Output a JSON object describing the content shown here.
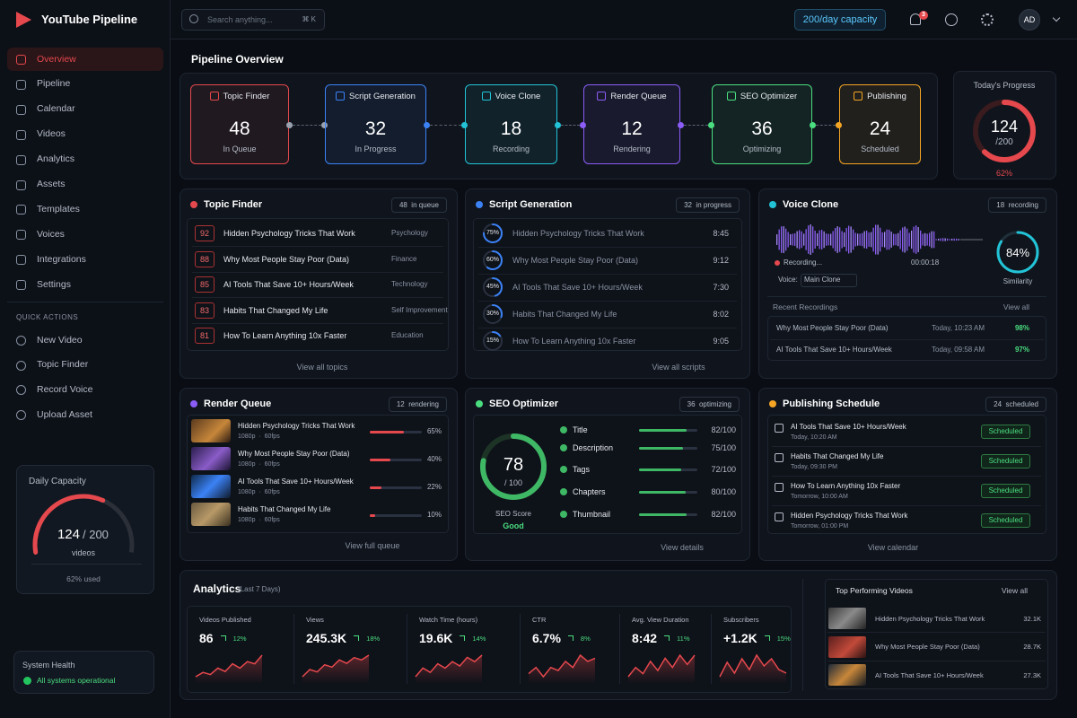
{
  "brand": "YouTube Pipeline",
  "search": {
    "placeholder": "Search anything...",
    "shortcut": "⌘ K"
  },
  "capacity_badge": "200/day capacity",
  "notifications": "3",
  "avatar": "AD",
  "nav": [
    "Overview",
    "Pipeline",
    "Calendar",
    "Videos",
    "Analytics",
    "Assets",
    "Templates",
    "Voices",
    "Integrations",
    "Settings"
  ],
  "quick_actions": {
    "title": "QUICK ACTIONS",
    "items": [
      "New Video",
      "Topic Finder",
      "Record Voice",
      "Upload Asset"
    ]
  },
  "daily_capacity": {
    "title": "Daily Capacity",
    "value": "124",
    "total": "/ 200",
    "unit": "videos",
    "used": "62% used"
  },
  "system_health": {
    "title": "System Health",
    "status": "All systems operational"
  },
  "overview": {
    "title": "Pipeline Overview",
    "stages": [
      {
        "name": "Topic Finder",
        "count": "48",
        "status": "In Queue"
      },
      {
        "name": "Script Generation",
        "count": "32",
        "status": "In Progress"
      },
      {
        "name": "Voice Clone",
        "count": "18",
        "status": "Recording"
      },
      {
        "name": "Render Queue",
        "count": "12",
        "status": "Rendering"
      },
      {
        "name": "SEO Optimizer",
        "count": "36",
        "status": "Optimizing"
      },
      {
        "name": "Publishing",
        "count": "24",
        "status": "Scheduled"
      }
    ]
  },
  "today": {
    "title": "Today's Progress",
    "value": "124",
    "total": "/200",
    "percent": "62%"
  },
  "topic_finder": {
    "title": "Topic Finder",
    "badge": "48  in queue",
    "rows": [
      [
        "92",
        "Hidden Psychology Tricks That Work",
        "Psychology"
      ],
      [
        "88",
        "Why Most People Stay Poor (Data)",
        "Finance"
      ],
      [
        "85",
        "AI Tools That Save 10+ Hours/Week",
        "Technology"
      ],
      [
        "83",
        "Habits That Changed My Life",
        "Self Improvement"
      ],
      [
        "81",
        "How To Learn Anything 10x Faster",
        "Education"
      ]
    ],
    "link": "View all topics"
  },
  "script_generation": {
    "title": "Script Generation",
    "badge": "32  in progress",
    "rows": [
      [
        "75%",
        "Hidden Psychology Tricks That Work",
        "8:45"
      ],
      [
        "60%",
        "Why Most People Stay Poor (Data)",
        "9:12"
      ],
      [
        "45%",
        "AI Tools That Save 10+ Hours/Week",
        "7:30"
      ],
      [
        "30%",
        "Habits That Changed My Life",
        "8:02"
      ],
      [
        "15%",
        "How To Learn Anything 10x Faster",
        "9:05"
      ]
    ],
    "link": "View all scripts"
  },
  "voice_clone": {
    "title": "Voice Clone",
    "badge": "18  recording",
    "recording": "Recording...",
    "time": "00:00:18",
    "voice_label": "Voice:",
    "voice": "Main Clone",
    "similarity": "84%",
    "similarity_label": "Similarity",
    "recent_title": "Recent Recordings",
    "view_all": "View all",
    "rows": [
      [
        "Why Most People Stay Poor (Data)",
        "Today, 10:23 AM",
        "98%"
      ],
      [
        "AI Tools That Save 10+ Hours/Week",
        "Today, 09:58 AM",
        "97%"
      ]
    ]
  },
  "render_queue": {
    "title": "Render Queue",
    "badge": "12  rendering",
    "rows": [
      [
        "Hidden Psychology Tricks That Work",
        "1080p  ·  60fps",
        "65%"
      ],
      [
        "Why Most People Stay Poor (Data)",
        "1080p  ·  60fps",
        "40%"
      ],
      [
        "AI Tools That Save 10+ Hours/Week",
        "1080p  ·  60fps",
        "22%"
      ],
      [
        "Habits That Changed My Life",
        "1080p  ·  60fps",
        "10%"
      ]
    ],
    "link": "View full queue"
  },
  "seo": {
    "title": "SEO Optimizer",
    "badge": "36  optimizing",
    "score": "78",
    "total": "/ 100",
    "score_label": "SEO Score",
    "grade": "Good",
    "metrics": [
      [
        "Title",
        "82/100"
      ],
      [
        "Description",
        "75/100"
      ],
      [
        "Tags",
        "72/100"
      ],
      [
        "Chapters",
        "80/100"
      ],
      [
        "Thumbnail",
        "82/100"
      ]
    ],
    "link": "View details"
  },
  "publishing": {
    "title": "Publishing Schedule",
    "badge": "24  scheduled",
    "rows": [
      [
        "AI Tools That Save 10+ Hours/Week",
        "Today, 10:20 AM",
        "Scheduled"
      ],
      [
        "Habits That Changed My Life",
        "Today, 09:30 PM",
        "Scheduled"
      ],
      [
        "How To Learn Anything 10x Faster",
        "Tomorrow, 10:00 AM",
        "Scheduled"
      ],
      [
        "Hidden Psychology Tricks That Work",
        "Tomorrow, 01:00 PM",
        "Scheduled"
      ]
    ],
    "link": "View calendar"
  },
  "analytics": {
    "title": "Analytics",
    "subtitle": "(Last 7 Days)",
    "kpis": [
      {
        "label": "Videos Published",
        "value": "86",
        "change": "12%",
        "trend": [
          3,
          4,
          3.5,
          5,
          4.2,
          6,
          5,
          6.5,
          6,
          8
        ]
      },
      {
        "label": "Views",
        "value": "245.3K",
        "change": "18%",
        "trend": [
          3,
          4.5,
          4,
          5.5,
          5,
          6.5,
          5.8,
          7,
          6.5,
          7.5
        ]
      },
      {
        "label": "Watch Time (hours)",
        "value": "19.6K",
        "change": "14%",
        "trend": [
          3,
          5,
          4,
          6,
          5,
          6.5,
          5.5,
          7.5,
          6.5,
          8
        ]
      },
      {
        "label": "CTR",
        "value": "6.7%",
        "change": "8%",
        "trend": [
          4,
          5,
          3.5,
          5,
          4.5,
          6,
          5,
          7,
          6,
          6.5
        ]
      },
      {
        "label": "Avg. View Duration",
        "value": "8:42",
        "change": "11%",
        "trend": [
          3.5,
          5,
          4,
          6,
          4.5,
          6.5,
          5,
          7,
          5.5,
          7
        ]
      },
      {
        "label": "Subscribers",
        "value": "+1.2K",
        "change": "15%",
        "trend": [
          4,
          6,
          4.5,
          6.5,
          5,
          7,
          5.5,
          6.5,
          5,
          4.5
        ]
      }
    ]
  },
  "top_videos": {
    "title": "Top Performing Videos",
    "view_all": "View all",
    "rows": [
      [
        "Hidden Psychology Tricks That Work",
        "32.1K"
      ],
      [
        "Why Most People Stay Poor (Data)",
        "28.7K"
      ],
      [
        "AI Tools That Save 10+ Hours/Week",
        "27.3K"
      ]
    ]
  }
}
